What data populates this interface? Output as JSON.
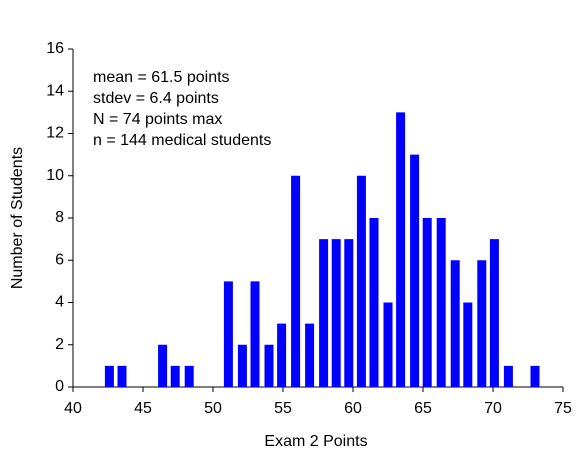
{
  "chart_data": {
    "type": "bar",
    "x": [
      42.6,
      43.5,
      46.4,
      47.3,
      48.3,
      51.1,
      52.1,
      53,
      54,
      54.9,
      55.9,
      56.9,
      57.9,
      58.8,
      59.7,
      60.6,
      61.5,
      62.5,
      63.4,
      64.4,
      65.3,
      66.3,
      67.3,
      68.2,
      69.2,
      70.1,
      71.1,
      73
    ],
    "values": [
      1,
      1,
      2,
      1,
      1,
      5,
      2,
      5,
      2,
      3,
      10,
      3,
      7,
      7,
      7,
      10,
      8,
      4,
      13,
      11,
      8,
      8,
      6,
      4,
      6,
      7,
      1,
      1
    ],
    "color": "#0000ff",
    "xlabel": "Exam 2 Points",
    "ylabel": "Number of Students",
    "xlim": [
      40,
      75
    ],
    "xticks": [
      40,
      45,
      50,
      55,
      60,
      65,
      70,
      75
    ],
    "ylim": [
      0,
      16
    ],
    "yticks": [
      0,
      2,
      4,
      6,
      8,
      10,
      12,
      14,
      16
    ],
    "annotations": [
      "mean = 61.5 points",
      "stdev = 6.4 points",
      "N = 74 points max",
      "n = 144 medical students"
    ]
  }
}
